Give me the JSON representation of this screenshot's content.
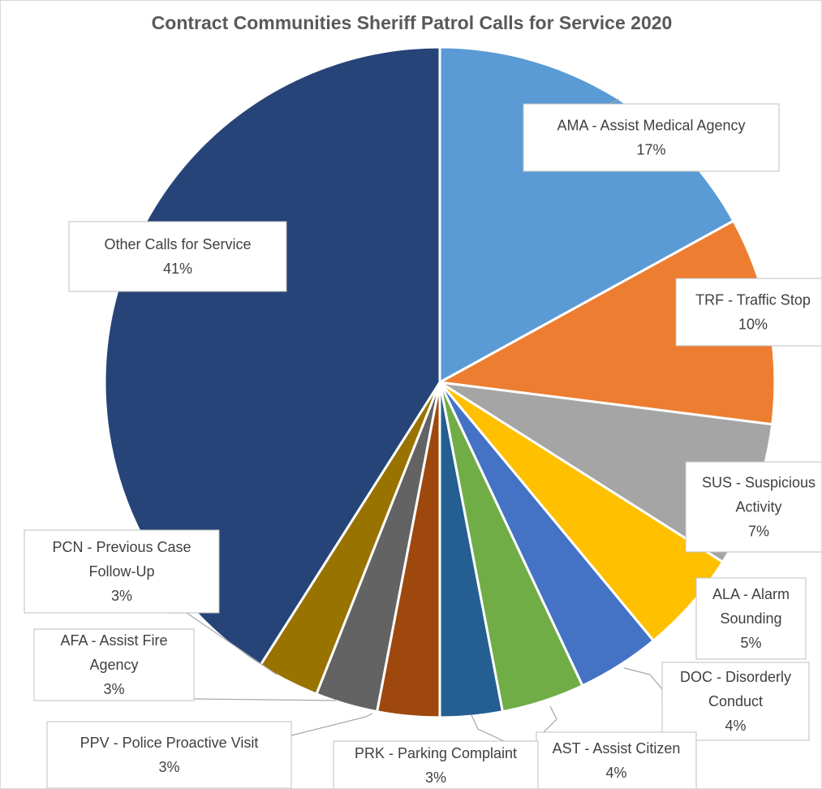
{
  "chart_data": {
    "type": "pie",
    "title": "Contract Communities Sheriff Patrol Calls for Service 2020",
    "start_angle_deg": 0,
    "direction": "clockwise",
    "slices": [
      {
        "name": "AMA - Assist Medical Agency",
        "value": 17,
        "label": "17%",
        "color": "#5b9bd5"
      },
      {
        "name": "TRF - Traffic Stop",
        "value": 10,
        "label": "10%",
        "color": "#ed7d31"
      },
      {
        "name": "SUS - Suspicious Activity",
        "value": 7,
        "label": "7%",
        "color": "#a5a5a5"
      },
      {
        "name": "ALA - Alarm Sounding",
        "value": 5,
        "label": "5%",
        "color": "#ffc000"
      },
      {
        "name": "DOC - Disorderly Conduct",
        "value": 4,
        "label": "4%",
        "color": "#4472c4"
      },
      {
        "name": "AST - Assist Citizen",
        "value": 4,
        "label": "4%",
        "color": "#70ad47"
      },
      {
        "name": "PRK - Parking Complaint",
        "value": 3,
        "label": "3%",
        "color": "#255e91"
      },
      {
        "name": "PPV - Police Proactive Visit",
        "value": 3,
        "label": "3%",
        "color": "#9e480e"
      },
      {
        "name": "AFA - Assist Fire Agency",
        "value": 3,
        "label": "3%",
        "color": "#636363"
      },
      {
        "name": "PCN - Previous Case Follow-Up",
        "value": 3,
        "label": "3%",
        "color": "#997300"
      },
      {
        "name": "Other Calls for Service",
        "value": 41,
        "label": "41%",
        "color": "#264478"
      }
    ]
  }
}
